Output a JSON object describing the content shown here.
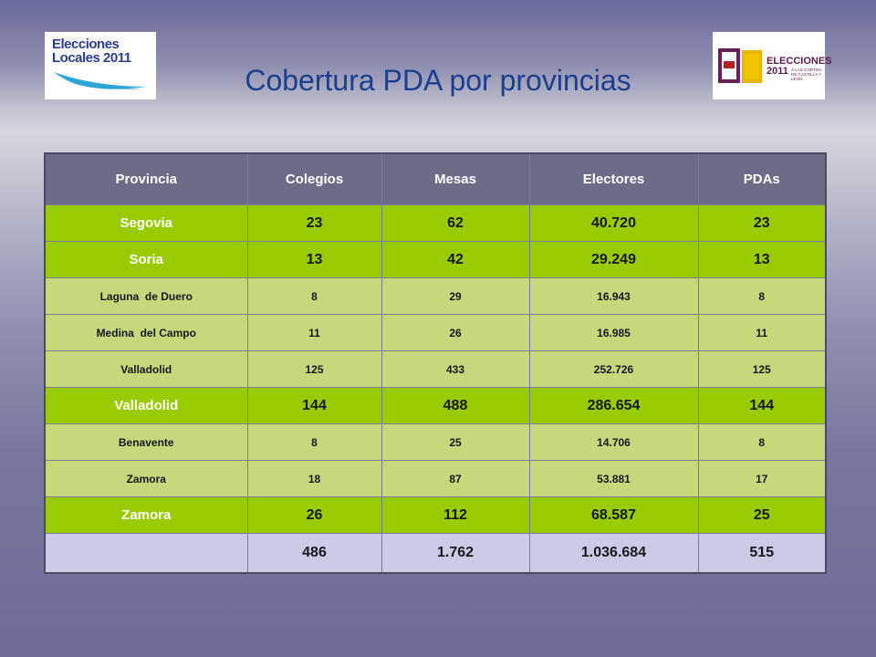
{
  "logos": {
    "left": {
      "line1": "Elecciones",
      "line2": "Locales 2011"
    },
    "right": {
      "line1": "ELECCIONES",
      "line2": "2011",
      "subtitle": "A LAS CORTES DE CASTILLA Y LEÓN"
    }
  },
  "title": "Cobertura PDA por provincias",
  "table": {
    "headers": [
      "Provincia",
      "Colegios",
      "Mesas",
      "Electores",
      "PDAs"
    ],
    "rows": [
      [
        "Segovia",
        "23",
        "62",
        "40.720",
        "23"
      ],
      [
        "Soria",
        "13",
        "42",
        "29.249",
        "13"
      ],
      [
        "Laguna  de Duero",
        "8",
        "29",
        "16.943",
        "8"
      ],
      [
        "Medina  del Campo",
        "11",
        "26",
        "16.985",
        "11"
      ],
      [
        "Valladolid",
        "125",
        "433",
        "252.726",
        "125"
      ],
      [
        "Valladolid",
        "144",
        "488",
        "286.654",
        "144"
      ],
      [
        "Benavente",
        "8",
        "25",
        "14.706",
        "8"
      ],
      [
        "Zamora",
        "18",
        "87",
        "53.881",
        "17"
      ],
      [
        "Zamora",
        "26",
        "112",
        "68.587",
        "25"
      ]
    ],
    "total": [
      "",
      "486",
      "1.762",
      "1.036.684",
      "515"
    ]
  },
  "colors": {
    "header_bg": "#6c6c89",
    "main_row_bg": "#99cc00",
    "sub_row_bg": "#c3d97b",
    "total_row_bg": "#cbcbe6",
    "title": "#1a3f8e"
  }
}
